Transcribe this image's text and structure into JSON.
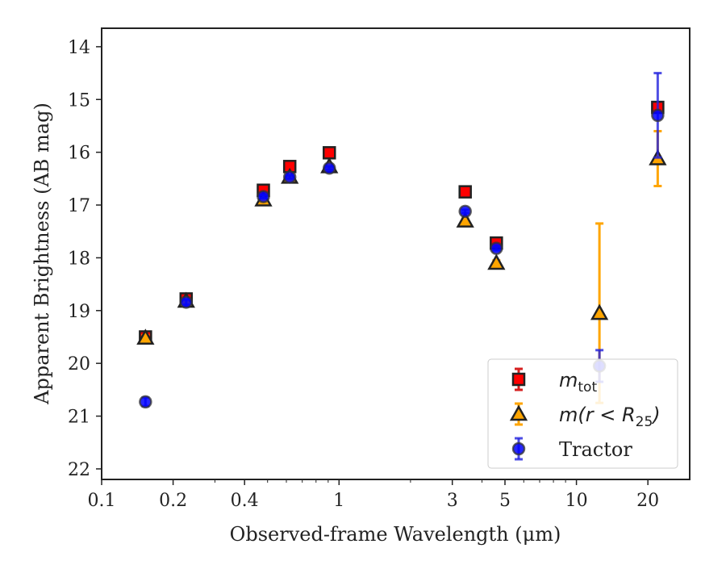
{
  "chart_data": {
    "type": "scatter",
    "xlabel": "Observed-frame Wavelength (μm)",
    "ylabel": "Apparent Brightness (AB mag)",
    "xscale": "log",
    "xlim": [
      0.1,
      30
    ],
    "ylim": [
      22.2,
      13.65
    ],
    "y_inverted": true,
    "x_ticks": [
      {
        "value": 0.1,
        "label": "0.1"
      },
      {
        "value": 0.2,
        "label": "0.2"
      },
      {
        "value": 0.4,
        "label": "0.4"
      },
      {
        "value": 1,
        "label": "1"
      },
      {
        "value": 3,
        "label": "3"
      },
      {
        "value": 5,
        "label": "5"
      },
      {
        "value": 10,
        "label": "10"
      },
      {
        "value": 20,
        "label": "20"
      }
    ],
    "y_ticks": [
      {
        "value": 14,
        "label": "14"
      },
      {
        "value": 15,
        "label": "15"
      },
      {
        "value": 16,
        "label": "16"
      },
      {
        "value": 17,
        "label": "17"
      },
      {
        "value": 18,
        "label": "18"
      },
      {
        "value": 19,
        "label": "19"
      },
      {
        "value": 20,
        "label": "20"
      },
      {
        "value": 21,
        "label": "21"
      },
      {
        "value": 22,
        "label": "22"
      }
    ],
    "grid": false,
    "legend_position": "bottom-right",
    "series": [
      {
        "name_base": "m",
        "name_sub": "tot",
        "marker": "square",
        "color": "#ff0000",
        "edge": "#222222",
        "error_color": "#d62020",
        "points": [
          {
            "x": 0.153,
            "y": 19.5,
            "err": 0.06
          },
          {
            "x": 0.227,
            "y": 18.78,
            "err": 0.04
          },
          {
            "x": 0.48,
            "y": 16.72,
            "err": 0.03
          },
          {
            "x": 0.62,
            "y": 16.27,
            "err": 0.03
          },
          {
            "x": 0.91,
            "y": 16.01,
            "err": 0.03
          },
          {
            "x": 3.4,
            "y": 16.75,
            "err": 0.03
          },
          {
            "x": 4.6,
            "y": 17.72,
            "err": 0.04
          },
          {
            "x": 22.0,
            "y": 15.15,
            "err": 0.06
          }
        ]
      },
      {
        "name_base": "m",
        "name_args": "(r < R",
        "name_sub": "25",
        "name_close": ")",
        "marker": "triangle",
        "color": "#ffa500",
        "edge": "#222222",
        "error_color": "#ffa500",
        "points": [
          {
            "x": 0.153,
            "y": 19.52,
            "err": 0.05
          },
          {
            "x": 0.227,
            "y": 18.82,
            "err": 0.04
          },
          {
            "x": 0.48,
            "y": 16.9,
            "err": 0.04
          },
          {
            "x": 0.62,
            "y": 16.47,
            "err": 0.03
          },
          {
            "x": 0.91,
            "y": 16.27,
            "err": 0.03
          },
          {
            "x": 3.4,
            "y": 17.3,
            "err": 0.04
          },
          {
            "x": 4.6,
            "y": 18.1,
            "err": 0.05
          },
          {
            "x": 12.5,
            "y": 19.05,
            "err": 1.7
          },
          {
            "x": 22.0,
            "y": 16.12,
            "err": 0.52
          }
        ]
      },
      {
        "name": "Tractor",
        "marker": "circle",
        "color": "#0000ff",
        "edge": "#333333",
        "error_color": "#2222dd",
        "points": [
          {
            "x": 0.153,
            "y": 20.73,
            "err": 0.08
          },
          {
            "x": 0.227,
            "y": 18.84,
            "err": 0.05
          },
          {
            "x": 0.48,
            "y": 16.84,
            "err": 0.03
          },
          {
            "x": 0.62,
            "y": 16.47,
            "err": 0.03
          },
          {
            "x": 0.91,
            "y": 16.3,
            "err": 0.03
          },
          {
            "x": 3.4,
            "y": 17.12,
            "err": 0.03
          },
          {
            "x": 4.6,
            "y": 17.82,
            "err": 0.04
          },
          {
            "x": 12.5,
            "y": 20.05,
            "err": 0.3
          },
          {
            "x": 22.0,
            "y": 15.3,
            "err": 0.8
          }
        ]
      }
    ]
  }
}
